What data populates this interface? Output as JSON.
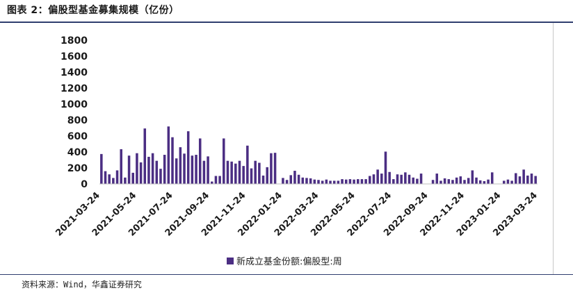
{
  "figure": {
    "title": "图表 2：偏股型基金募集规模（亿份）",
    "source": "资料来源：Wind，华鑫证券研究"
  },
  "chart_data": {
    "type": "bar",
    "title": "",
    "xlabel": "",
    "ylabel": "",
    "ylim": [
      0,
      1800
    ],
    "yticks": [
      0,
      200,
      400,
      600,
      800,
      1000,
      1200,
      1400,
      1600,
      1800
    ],
    "xtick_labels": [
      "2021-03-24",
      "2021-05-24",
      "2021-07-24",
      "2021-09-24",
      "2021-11-24",
      "2022-01-24",
      "2022-03-24",
      "2022-05-24",
      "2022-07-24",
      "2022-09-24",
      "2022-11-24",
      "2023-01-24",
      "2023-03-24"
    ],
    "grid": false,
    "legend_position": "bottom",
    "color": "#4b2e83",
    "series": [
      {
        "name": "新成立基金份额:偏股型:周",
        "values": [
          375,
          160,
          120,
          75,
          170,
          435,
          80,
          355,
          140,
          385,
          270,
          695,
          340,
          385,
          290,
          190,
          365,
          720,
          585,
          320,
          460,
          380,
          660,
          355,
          365,
          570,
          290,
          345,
          30,
          100,
          100,
          570,
          290,
          280,
          255,
          290,
          225,
          480,
          195,
          290,
          265,
          105,
          210,
          385,
          390,
          0,
          75,
          50,
          110,
          165,
          115,
          80,
          75,
          70,
          55,
          50,
          40,
          55,
          40,
          40,
          40,
          60,
          55,
          60,
          55,
          60,
          60,
          60,
          100,
          120,
          180,
          130,
          405,
          150,
          60,
          120,
          115,
          145,
          115,
          80,
          65,
          130,
          0,
          0,
          50,
          130,
          40,
          70,
          60,
          50,
          80,
          95,
          50,
          75,
          170,
          80,
          45,
          35,
          55,
          145,
          0,
          0,
          40,
          55,
          40,
          135,
          95,
          180,
          105,
          130,
          100
        ]
      }
    ]
  }
}
